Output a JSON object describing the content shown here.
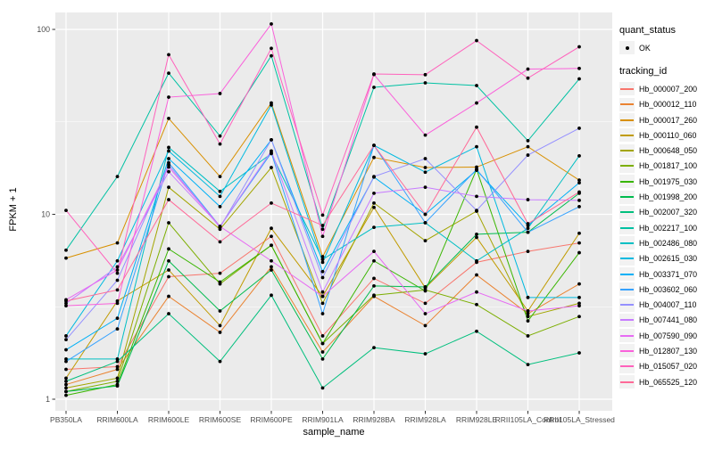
{
  "colors": {
    "panel_bg": "#EBEBEB",
    "grid": "#FFFFFF",
    "axis_text": "#4D4D4D",
    "tick_mark": "#333333",
    "point": "#000000",
    "legend_key_bg": "#F2F2F2"
  },
  "legend": {
    "quant_status_title": "quant_status",
    "ok_label": "OK",
    "tracking_id_title": "tracking_id"
  },
  "chart_data": {
    "type": "line",
    "title": "",
    "xlabel": "sample_name",
    "ylabel": "FPKM + 1",
    "y_scale": "log10",
    "y_ticks": [
      1,
      10,
      100
    ],
    "y_tick_labels": [
      "1",
      "10",
      "100"
    ],
    "y_minor_gridlines": [
      3.162,
      31.62
    ],
    "ylim": [
      0.87,
      123
    ],
    "legend_position": "right",
    "marker": "black-point",
    "quant_status": "OK",
    "categories": [
      "PB350LA",
      "RRIM600LA",
      "RRIM600LE",
      "RRIM600SE",
      "RRIM600PE",
      "RRIM901LA",
      "RRIM928BA",
      "RRIM928LA",
      "RRIM928LE",
      "RRII105LA_Control",
      "RRII105LA_Stressed"
    ],
    "series": [
      {
        "name": "Hb_000007_200",
        "color": "#F8766D",
        "values": [
          1.45,
          1.5,
          4.6,
          4.8,
          7.6,
          2.2,
          4.5,
          3.3,
          5.5,
          6.3,
          7.0
        ]
      },
      {
        "name": "Hb_000012_110",
        "color": "#EA8331",
        "values": [
          1.2,
          1.45,
          3.6,
          2.3,
          5.2,
          1.8,
          3.6,
          2.5,
          4.7,
          2.9,
          4.2
        ]
      },
      {
        "name": "Hb_000017_260",
        "color": "#D89000",
        "values": [
          5.8,
          7.0,
          33,
          16,
          40,
          5.9,
          20.3,
          17.9,
          18,
          23.2,
          15.3
        ]
      },
      {
        "name": "Hb_000110_060",
        "color": "#C09B00",
        "values": [
          1.3,
          3.4,
          5.0,
          2.5,
          8.4,
          3.6,
          10.9,
          4.0,
          7.5,
          3.0,
          7.9
        ]
      },
      {
        "name": "Hb_000648_050",
        "color": "#A3A500",
        "values": [
          1.15,
          1.3,
          14,
          8.3,
          17.9,
          3.3,
          11.5,
          7.2,
          10.4,
          2.8,
          3.3
        ]
      },
      {
        "name": "Hb_001817_100",
        "color": "#7CAE00",
        "values": [
          1.1,
          1.25,
          9.0,
          4.2,
          6.8,
          2.0,
          3.65,
          3.9,
          3.25,
          2.2,
          2.8
        ]
      },
      {
        "name": "Hb_001975_030",
        "color": "#39B600",
        "values": [
          1.05,
          1.2,
          6.5,
          4.3,
          6.8,
          2.0,
          5.6,
          3.85,
          17.5,
          2.65,
          6.2
        ]
      },
      {
        "name": "Hb_001998_200",
        "color": "#00BB4E",
        "values": [
          1.1,
          1.18,
          5.6,
          3.0,
          5.0,
          1.65,
          4.1,
          4.05,
          7.8,
          8.0,
          13.0
        ]
      },
      {
        "name": "Hb_002007_320",
        "color": "#00BF7D",
        "values": [
          1.25,
          1.6,
          2.9,
          1.6,
          3.65,
          1.15,
          1.9,
          1.76,
          2.33,
          1.54,
          1.78
        ]
      },
      {
        "name": "Hb_002217_100",
        "color": "#00C1A3",
        "values": [
          6.4,
          16,
          58,
          26.5,
          72,
          8.3,
          48.6,
          51.4,
          49.7,
          25,
          54
        ]
      },
      {
        "name": "Hb_002486_080",
        "color": "#00BFC4",
        "values": [
          1.65,
          1.65,
          23,
          13.3,
          21.3,
          5.7,
          8.5,
          9.0,
          5.6,
          8.4,
          20.7
        ]
      },
      {
        "name": "Hb_002615_030",
        "color": "#00BAE0",
        "values": [
          2.2,
          5.6,
          22,
          12.5,
          39,
          5.5,
          23.6,
          16.9,
          23.2,
          3.55,
          3.55
        ]
      },
      {
        "name": "Hb_003371_070",
        "color": "#00B0F6",
        "values": [
          1.85,
          2.74,
          20,
          11,
          25.3,
          4.9,
          15.9,
          10.0,
          17.3,
          8.7,
          14.8
        ]
      },
      {
        "name": "Hb_003602_060",
        "color": "#35A2FF",
        "values": [
          1.6,
          2.4,
          19,
          8.6,
          21.5,
          2.9,
          23.6,
          9.0,
          17.5,
          8.0,
          11.0
        ]
      },
      {
        "name": "Hb_004007_110",
        "color": "#9590FF",
        "values": [
          2.1,
          4.4,
          18.5,
          8.5,
          25.3,
          4.55,
          16,
          20.0,
          10.5,
          20.9,
          29.2
        ]
      },
      {
        "name": "Hb_007441_080",
        "color": "#C77CFF",
        "values": [
          3.3,
          5.2,
          17,
          8.6,
          22,
          3.8,
          13,
          14.0,
          12.5,
          12.0,
          11.9
        ]
      },
      {
        "name": "Hb_007590_090",
        "color": "#E76BF3",
        "values": [
          3.45,
          5.0,
          18,
          8.6,
          5.6,
          3.6,
          6.3,
          2.9,
          3.8,
          3.0,
          3.2
        ]
      },
      {
        "name": "Hb_012807_130",
        "color": "#FA62DB",
        "values": [
          3.2,
          3.3,
          43,
          45,
          107,
          7.6,
          57,
          26.8,
          40,
          61,
          61.5
        ]
      },
      {
        "name": "Hb_015057_020",
        "color": "#FF62BC",
        "values": [
          10.5,
          4.8,
          73,
          24,
          79,
          9.9,
          57.4,
          56.9,
          87,
          54.5,
          80.5
        ]
      },
      {
        "name": "Hb_065525_120",
        "color": "#FF6A98",
        "values": [
          3.4,
          3.9,
          12,
          7.1,
          11.5,
          8.7,
          23.6,
          10.0,
          29.6,
          8.9,
          13.2
        ]
      }
    ]
  }
}
